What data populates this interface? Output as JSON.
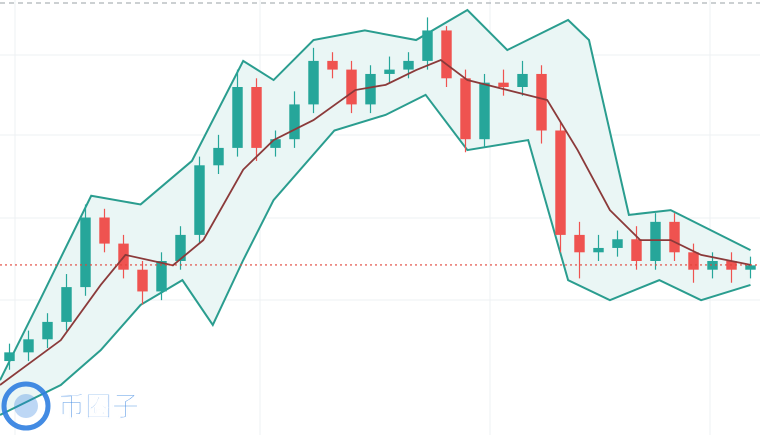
{
  "chart_data": {
    "type": "candlestick",
    "watermark": "币圈子",
    "xlim": [
      -0.5,
      39.5
    ],
    "ylim": [
      0,
      100
    ],
    "up_color": "#26a69a",
    "down_color": "#ef5350",
    "open": [
      17,
      19,
      22,
      26,
      34,
      50,
      44,
      38,
      33,
      40,
      46,
      62,
      66,
      80,
      66,
      68,
      76,
      86,
      84,
      76,
      83,
      84,
      86,
      93,
      82,
      68,
      81,
      80,
      83,
      70,
      46,
      42,
      43,
      45,
      40,
      49,
      42,
      38,
      40,
      38
    ],
    "high": [
      21,
      24,
      28,
      37,
      53,
      52,
      46,
      40,
      42,
      48,
      64,
      69,
      84,
      82,
      70,
      79,
      89,
      88,
      86,
      85,
      87,
      88,
      96,
      94,
      84,
      83,
      84,
      86,
      85,
      72,
      49,
      46,
      47,
      48,
      51,
      51,
      44,
      42,
      42,
      41
    ],
    "low": [
      15,
      17,
      20,
      24,
      32,
      42,
      36,
      30,
      31,
      38,
      44,
      60,
      64,
      63,
      64,
      66,
      74,
      82,
      74,
      74,
      81,
      82,
      84,
      80,
      65,
      66,
      78,
      78,
      67,
      42,
      36,
      40,
      41,
      38,
      38,
      40,
      35,
      36,
      35,
      36
    ],
    "close": [
      19,
      22,
      26,
      34,
      50,
      44,
      38,
      33,
      40,
      46,
      62,
      66,
      80,
      66,
      68,
      76,
      86,
      84,
      76,
      83,
      84,
      86,
      93,
      82,
      68,
      81,
      80,
      83,
      70,
      46,
      42,
      43,
      45,
      40,
      49,
      42,
      38,
      40,
      38,
      39
    ],
    "bands": {
      "fill": "#eaf6f5",
      "upper": {
        "color": "#2a9d8f",
        "x": [
          -0.5,
          1.6,
          4.3,
          6.9,
          9.6,
          12.3,
          13.9,
          16,
          18.7,
          21.4,
          24.1,
          26.2,
          29.4,
          30.5,
          32.6,
          34.8,
          39
        ],
        "values": [
          12.6,
          31,
          55,
          53,
          63,
          86,
          81.6,
          90.8,
          93,
          90.8,
          97.7,
          88.5,
          95.4,
          90.8,
          50.6,
          51.7,
          42.5
        ]
      },
      "middle": {
        "color": "#8b3a3a",
        "x": [
          -0.5,
          2.7,
          4.8,
          6.1,
          8.6,
          10.2,
          12.3,
          13.9,
          16,
          18.2,
          19.8,
          21.4,
          22.7,
          24.1,
          26.2,
          28.3,
          29.9,
          31.6,
          33.2,
          34.8,
          36.4,
          39
        ],
        "values": [
          11.5,
          21.8,
          34.5,
          41.4,
          39,
          44.8,
          61,
          67.8,
          72.4,
          79.3,
          80.5,
          83.9,
          86.2,
          81.6,
          79.3,
          77,
          65.5,
          51.7,
          44.8,
          44.8,
          41.4,
          39.1
        ]
      },
      "lower": {
        "color": "#2a9d8f",
        "x": [
          -0.5,
          2.7,
          4.8,
          6.9,
          9.1,
          10.7,
          12.3,
          13.9,
          17.1,
          19.8,
          21.9,
          24.1,
          27.3,
          29.4,
          31.6,
          34.2,
          36.4,
          39
        ],
        "values": [
          4.6,
          11.5,
          19.5,
          29.9,
          35.6,
          25.3,
          40.2,
          54,
          70,
          73.6,
          78.2,
          65.5,
          67.8,
          35.6,
          31,
          35.6,
          31,
          34.5
        ]
      }
    },
    "price_line": {
      "value": 39.1,
      "color": "#e0443a"
    }
  }
}
